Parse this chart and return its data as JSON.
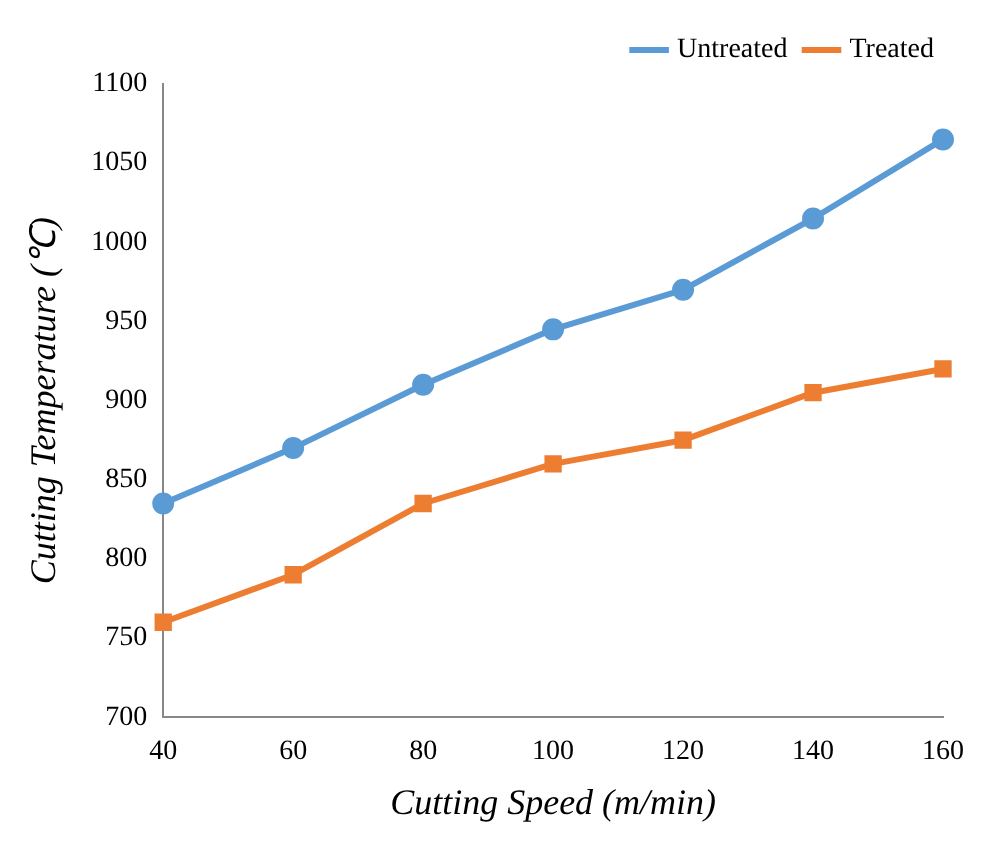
{
  "chart_data": {
    "type": "line",
    "xlabel": "Cutting Speed (m/min)",
    "ylabel": "Cutting Temperature (℃)",
    "categories": [
      "40",
      "60",
      "80",
      "100",
      "120",
      "140",
      "160"
    ],
    "series": [
      {
        "name": "Untreated",
        "color": "#5b9bd5",
        "marker": "circle",
        "values": [
          835,
          870,
          910,
          945,
          970,
          1015,
          1065
        ]
      },
      {
        "name": "Treated",
        "color": "#ed7d31",
        "marker": "square",
        "values": [
          760,
          790,
          835,
          860,
          875,
          905,
          920
        ]
      }
    ],
    "ylim": [
      700,
      1100
    ],
    "yticks": [
      700,
      750,
      800,
      850,
      900,
      950,
      1000,
      1050,
      1100
    ],
    "grid": false,
    "legend": "top right",
    "line_style": "solid"
  }
}
